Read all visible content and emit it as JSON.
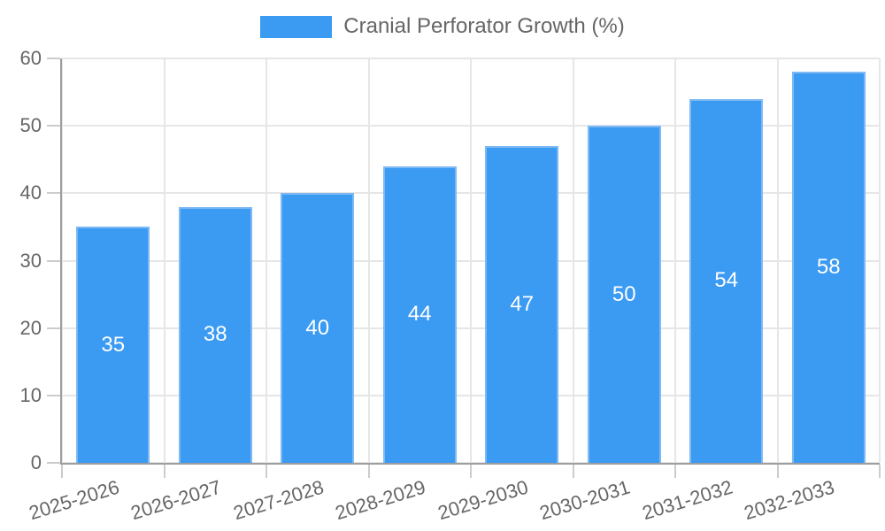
{
  "chart_data": {
    "type": "bar",
    "title": "",
    "legend_label": "Cranial Perforator Growth (%)",
    "legend_position": "top",
    "categories": [
      "2025-2026",
      "2026-2027",
      "2027-2028",
      "2028-2029",
      "2029-2030",
      "2030-2031",
      "2031-2032",
      "2032-2033"
    ],
    "values": [
      35,
      38,
      40,
      44,
      47,
      50,
      54,
      58
    ],
    "value_labels": [
      "35",
      "38",
      "40",
      "44",
      "47",
      "50",
      "54",
      "58"
    ],
    "xlabel": "",
    "ylabel": "",
    "ylim": [
      0,
      60
    ],
    "yticks": [
      0,
      10,
      20,
      30,
      40,
      50,
      60
    ],
    "grid": true,
    "x_label_rotation_deg": -17,
    "colors": {
      "bar_fill": "#3b9af2",
      "bar_border": "#7db9f3",
      "grid": "#e6e6e6",
      "tick_mark": "#cccccc",
      "axis": "#9e9e9e",
      "tick_text": "#666666",
      "value_text": "#ffffff",
      "background": "#ffffff"
    }
  }
}
